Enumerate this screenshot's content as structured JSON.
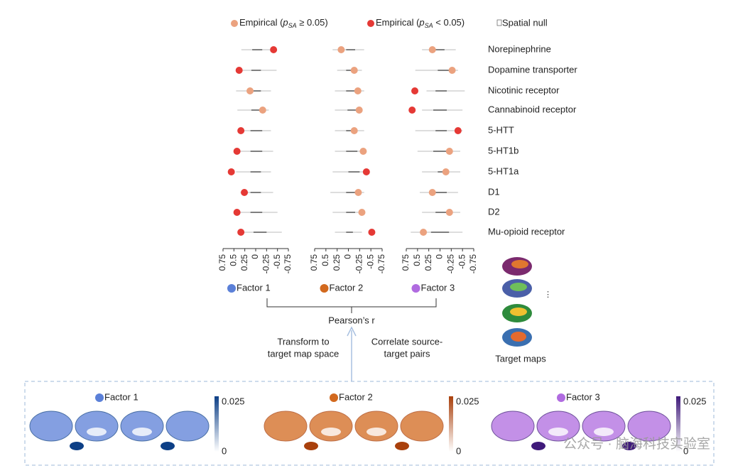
{
  "chart_data": {
    "type": "dot",
    "legend": [
      {
        "prefix": "Empirical (",
        "p": "p",
        "sub": "SA",
        "suffix": " ≥ 0.05)",
        "color": "#eba27f"
      },
      {
        "prefix": "Empirical (",
        "p": "p",
        "sub": "SA",
        "suffix": " < 0.05)",
        "color": "#e53935"
      },
      {
        "label": "Spatial null",
        "color": "#444444"
      }
    ],
    "categories": [
      "Norepinephrine",
      "Dopamine transporter",
      "Nicotinic receptor",
      "Cannabinoid receptor",
      "5-HTT",
      "5-HT1b",
      "5-HT1a",
      "D1",
      "D2",
      "Mu-opioid receptor"
    ],
    "xlim": [
      0.75,
      -0.75
    ],
    "xticks": [
      0.75,
      0.5,
      0.25,
      0,
      -0.25,
      -0.5,
      -0.75
    ],
    "panels": [
      {
        "name": "Factor 1",
        "color": "#5b80d8",
        "values": [
          -0.41,
          0.38,
          0.13,
          -0.16,
          0.34,
          0.43,
          0.56,
          0.26,
          0.43,
          0.34
        ],
        "significant": [
          true,
          true,
          false,
          false,
          true,
          true,
          true,
          true,
          true,
          true
        ],
        "null": [
          [
            -0.33,
            -0.15,
            0.08,
            0.33
          ],
          [
            -0.48,
            -0.12,
            0.1,
            0.38
          ],
          [
            -0.35,
            -0.12,
            0.1,
            0.45
          ],
          [
            -0.3,
            -0.1,
            0.1,
            0.42
          ],
          [
            -0.35,
            -0.15,
            0.12,
            0.38
          ],
          [
            -0.4,
            -0.15,
            0.12,
            0.42
          ],
          [
            -0.35,
            -0.12,
            0.12,
            0.45
          ],
          [
            -0.4,
            -0.12,
            0.12,
            0.35
          ],
          [
            -0.5,
            -0.15,
            0.12,
            0.4
          ],
          [
            -0.6,
            -0.25,
            0.05,
            0.35
          ]
        ]
      },
      {
        "name": "Factor 2",
        "color": "#d2691e",
        "values": [
          0.16,
          -0.13,
          -0.21,
          -0.24,
          -0.13,
          -0.33,
          -0.4,
          -0.22,
          -0.3,
          -0.52
        ],
        "significant": [
          false,
          false,
          false,
          false,
          false,
          false,
          true,
          false,
          false,
          true
        ],
        "null": [
          [
            -0.35,
            -0.15,
            0.05,
            0.35
          ],
          [
            -0.3,
            -0.15,
            0.05,
            0.25
          ],
          [
            -0.35,
            -0.2,
            0.05,
            0.3
          ],
          [
            -0.3,
            -0.2,
            0.02,
            0.3
          ],
          [
            -0.35,
            -0.15,
            0.05,
            0.3
          ],
          [
            -0.4,
            -0.2,
            0.05,
            0.3
          ],
          [
            -0.35,
            -0.25,
            0.0,
            0.35
          ],
          [
            -0.35,
            -0.2,
            0.05,
            0.4
          ],
          [
            -0.3,
            -0.15,
            0.05,
            0.35
          ],
          [
            -0.3,
            -0.1,
            0.05,
            0.3
          ]
        ]
      },
      {
        "name": "Factor 3",
        "color": "#b06be0",
        "values": [
          0.17,
          -0.27,
          0.56,
          0.62,
          -0.4,
          -0.21,
          -0.13,
          0.17,
          -0.21,
          0.37
        ],
        "significant": [
          false,
          false,
          true,
          true,
          true,
          false,
          false,
          false,
          false,
          false
        ],
        "null": [
          [
            -0.35,
            -0.1,
            0.1,
            0.4
          ],
          [
            -0.4,
            -0.2,
            0.05,
            0.55
          ],
          [
            -0.55,
            -0.15,
            0.1,
            0.3
          ],
          [
            -0.5,
            -0.15,
            0.15,
            0.4
          ],
          [
            -0.5,
            -0.15,
            0.1,
            0.55
          ],
          [
            -0.45,
            -0.2,
            0.15,
            0.5
          ],
          [
            -0.45,
            -0.2,
            0.05,
            0.4
          ],
          [
            -0.4,
            -0.15,
            0.15,
            0.45
          ],
          [
            -0.45,
            -0.2,
            0.1,
            0.4
          ],
          [
            -0.5,
            -0.2,
            0.2,
            0.65
          ]
        ]
      }
    ],
    "axis_label": "Pearson’s r",
    "bottom": {
      "left_note": [
        "Transform to",
        "target map space"
      ],
      "right_note": [
        "Correlate source-",
        "target pairs"
      ],
      "target_label": "Target maps",
      "colorbar_ticks": [
        0.025,
        0
      ],
      "colorbar_colors": [
        "#0d3f86",
        "#a9400c",
        "#3f1a7a"
      ],
      "watermark": "公众号 · 脑海科技实验室"
    }
  }
}
